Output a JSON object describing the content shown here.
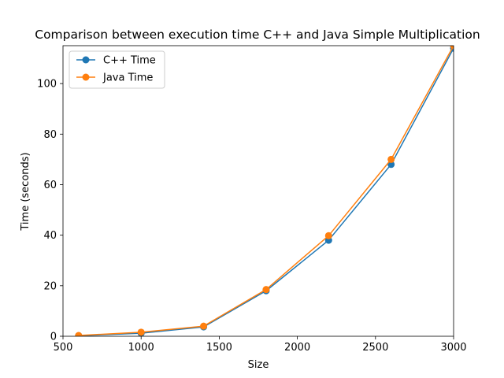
{
  "chart_data": {
    "type": "line",
    "title": "Comparison between execution time C++ and Java Simple Multiplication",
    "xlabel": "Size",
    "ylabel": "Time (seconds)",
    "xlim": [
      500,
      3000
    ],
    "ylim": [
      0,
      115
    ],
    "xticks": [
      500,
      1000,
      1500,
      2000,
      2500,
      3000
    ],
    "yticks": [
      0,
      20,
      40,
      60,
      80,
      100
    ],
    "x": [
      600,
      1000,
      1400,
      1800,
      2200,
      2600,
      3000
    ],
    "series": [
      {
        "name": "C++ Time",
        "color": "#1f77b4",
        "marker": "circle",
        "values": [
          0.2,
          1.2,
          3.7,
          18.0,
          38.0,
          68.0,
          114.0
        ]
      },
      {
        "name": "Java Time",
        "color": "#ff7f0e",
        "marker": "circle",
        "values": [
          0.3,
          1.6,
          4.0,
          18.5,
          39.8,
          70.0,
          115.0
        ]
      }
    ],
    "grid": false,
    "legend": "top-left"
  }
}
